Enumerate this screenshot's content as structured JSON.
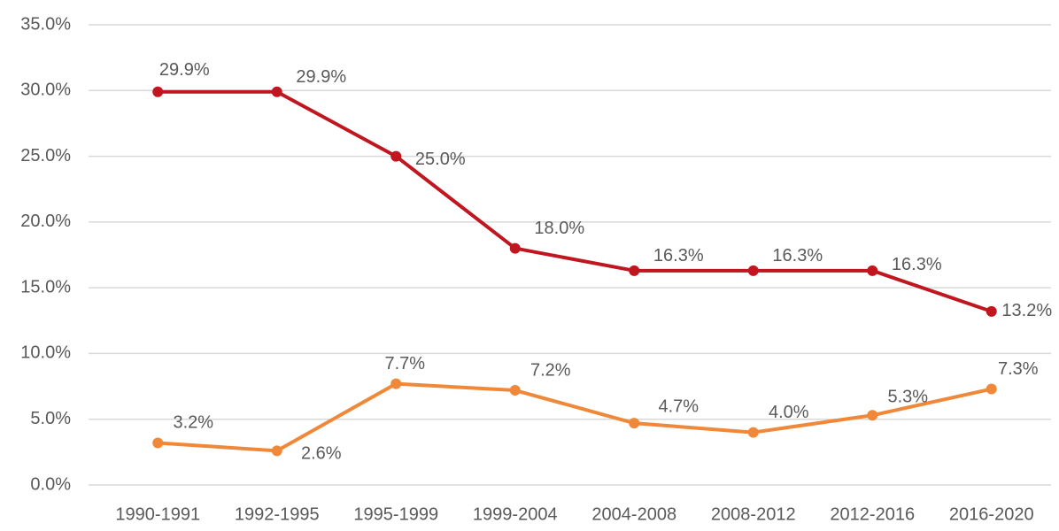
{
  "chart_data": {
    "type": "line",
    "categories": [
      "1990-1991",
      "1992-1995",
      "1995-1999",
      "1999-2004",
      "2004-2008",
      "2008-2012",
      "2012-2016",
      "2016-2020"
    ],
    "series": [
      {
        "color": "#c0161f",
        "values": [
          29.9,
          29.9,
          25.0,
          18.0,
          16.3,
          16.3,
          16.3,
          13.2
        ],
        "value_labels": [
          "29.9%",
          "29.9%",
          "25.0%",
          "18.0%",
          "16.3%",
          "16.3%",
          "16.3%",
          "13.2%"
        ]
      },
      {
        "color": "#f0883a",
        "values": [
          3.2,
          2.6,
          7.7,
          7.2,
          4.7,
          4.0,
          5.3,
          7.3
        ],
        "value_labels": [
          "3.2%",
          "2.6%",
          "7.7%",
          "7.2%",
          "4.7%",
          "4.0%",
          "5.3%",
          "7.3%"
        ]
      }
    ],
    "ylim": [
      0,
      35
    ],
    "yticks": [
      {
        "value": 0,
        "label": "0.0%"
      },
      {
        "value": 5,
        "label": "5.0%"
      },
      {
        "value": 10,
        "label": "10.0%"
      },
      {
        "value": 15,
        "label": "15.0%"
      },
      {
        "value": 20,
        "label": "20.0%"
      },
      {
        "value": 25,
        "label": "25.0%"
      },
      {
        "value": 30,
        "label": "30.0%"
      },
      {
        "value": 35,
        "label": "35.0%"
      }
    ],
    "grid": true
  }
}
